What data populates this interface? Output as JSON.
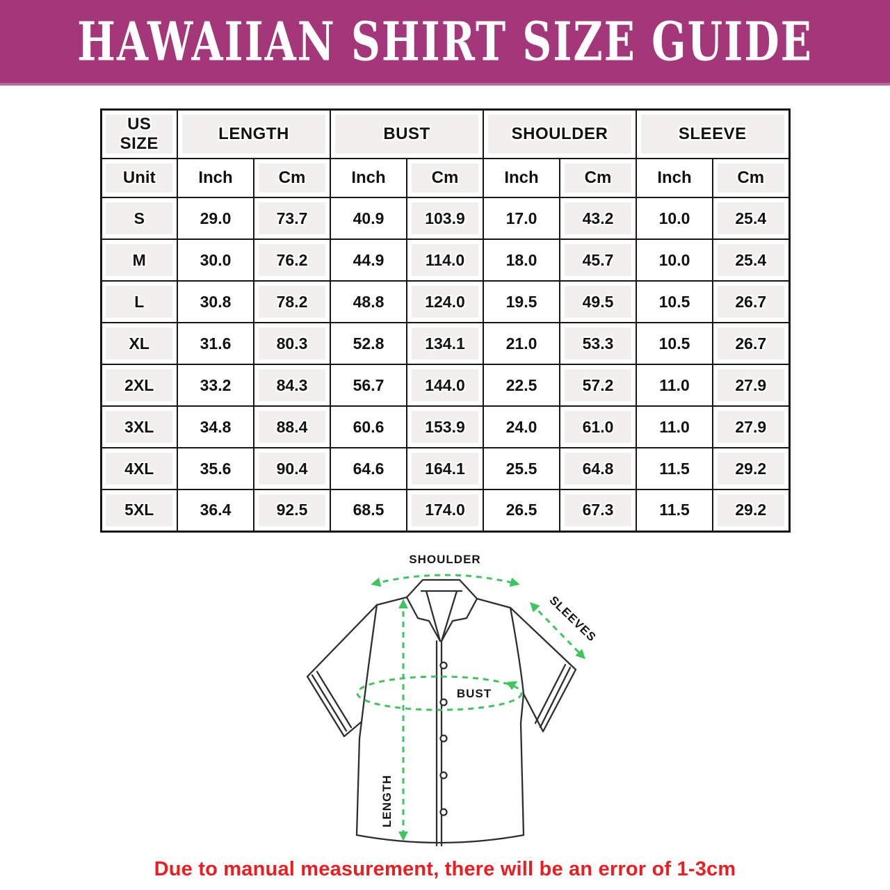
{
  "banner": {
    "title": "HAWAIIAN SHIRT SIZE GUIDE"
  },
  "theme": {
    "banner_bg": "#a33779",
    "banner_edge": "#b4679f",
    "accent_green": "#3fc55e",
    "disclaimer_red": "#ee1c1e",
    "grid_line": "#161616",
    "cell_gray": "#f1f0ee",
    "shirt_line": "#2e2e2e"
  },
  "table": {
    "corner_header": "US SIZE",
    "groups": [
      {
        "label": "LENGTH"
      },
      {
        "label": "BUST"
      },
      {
        "label": "SHOULDER"
      },
      {
        "label": "SLEEVE"
      }
    ],
    "unit_label": "Unit",
    "unit_columns": [
      "Inch",
      "Cm",
      "Inch",
      "Cm",
      "Inch",
      "Cm",
      "Inch",
      "Cm"
    ],
    "rows": [
      {
        "size": "S",
        "cells": [
          "29.0",
          "73.7",
          "40.9",
          "103.9",
          "17.0",
          "43.2",
          "10.0",
          "25.4"
        ]
      },
      {
        "size": "M",
        "cells": [
          "30.0",
          "76.2",
          "44.9",
          "114.0",
          "18.0",
          "45.7",
          "10.0",
          "25.4"
        ]
      },
      {
        "size": "L",
        "cells": [
          "30.8",
          "78.2",
          "48.8",
          "124.0",
          "19.5",
          "49.5",
          "10.5",
          "26.7"
        ]
      },
      {
        "size": "XL",
        "cells": [
          "31.6",
          "80.3",
          "52.8",
          "134.1",
          "21.0",
          "53.3",
          "10.5",
          "26.7"
        ]
      },
      {
        "size": "2XL",
        "cells": [
          "33.2",
          "84.3",
          "56.7",
          "144.0",
          "22.5",
          "57.2",
          "11.0",
          "27.9"
        ]
      },
      {
        "size": "3XL",
        "cells": [
          "34.8",
          "88.4",
          "60.6",
          "153.9",
          "24.0",
          "61.0",
          "11.0",
          "27.9"
        ]
      },
      {
        "size": "4XL",
        "cells": [
          "35.6",
          "90.4",
          "64.6",
          "164.1",
          "25.5",
          "64.8",
          "11.5",
          "29.2"
        ]
      },
      {
        "size": "5XL",
        "cells": [
          "36.4",
          "92.5",
          "68.5",
          "174.0",
          "26.5",
          "67.3",
          "11.5",
          "29.2"
        ]
      }
    ]
  },
  "diagram": {
    "labels": {
      "shoulder": "SHOULDER",
      "sleeves": "SLEEVES",
      "bust": "BUST",
      "length": "LENGTH"
    }
  },
  "footer": {
    "disclaimer": "Due to manual measurement, there will be an error of 1-3cm"
  }
}
